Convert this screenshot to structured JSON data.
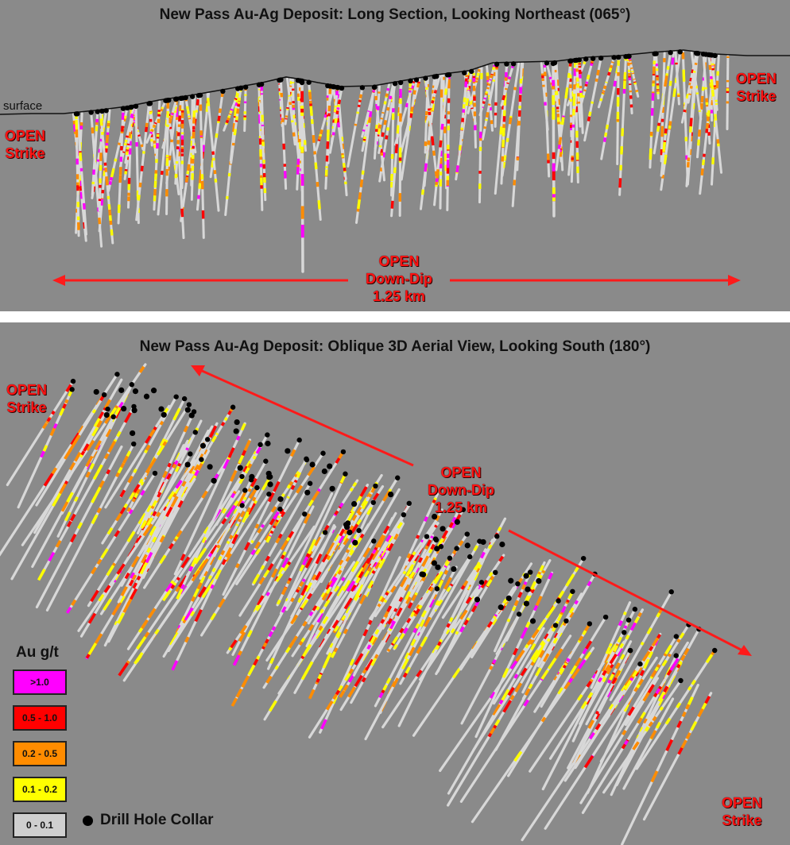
{
  "top_panel": {
    "title": "New Pass Au-Ag Deposit:  Long Section, Looking Northeast (065°)",
    "surface_label": "surface",
    "left_label": [
      "OPEN",
      "Strike"
    ],
    "right_label": [
      "OPEN",
      "Strike"
    ],
    "center_label": [
      "OPEN",
      "Down-Dip",
      "1.25 km"
    ]
  },
  "bottom_panel": {
    "title": "New Pass Au-Ag Deposit:  Oblique 3D Aerial View, Looking South (180°)",
    "left_label": [
      "OPEN",
      "Strike"
    ],
    "center_label": [
      "OPEN",
      "Down-Dip",
      "1.25 km"
    ],
    "right_label": [
      "OPEN",
      "Strike"
    ]
  },
  "legend": {
    "title": "Au g/t",
    "items": [
      {
        "label": ">1.0",
        "color": "#ff00ff"
      },
      {
        "label": "0.5 - 1.0",
        "color": "#ff0000"
      },
      {
        "label": "0.2 - 0.5",
        "color": "#ff8c00"
      },
      {
        "label": "0.1 - 0.2",
        "color": "#ffff00"
      },
      {
        "label": "0 - 0.1",
        "color": "#cfcfcf"
      }
    ],
    "collar_label": "Drill Hole Collar"
  },
  "colors": {
    "background": "#8a8a8a",
    "drill_hole": "#d8d8d8",
    "arrow": "#ff1a1a",
    "collar": "#000000"
  }
}
